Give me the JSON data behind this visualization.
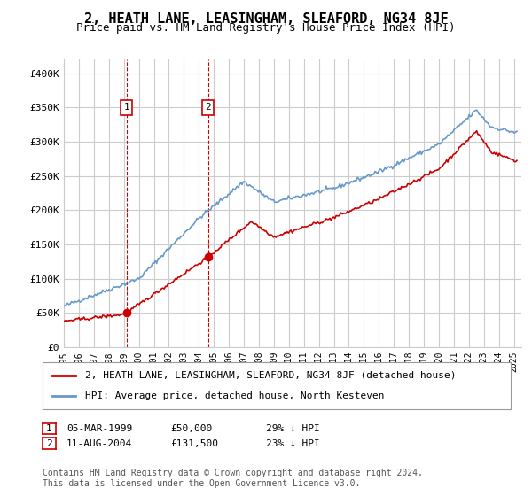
{
  "title": "2, HEATH LANE, LEASINGHAM, SLEAFORD, NG34 8JF",
  "subtitle": "Price paid vs. HM Land Registry's House Price Index (HPI)",
  "ylabel_ticks": [
    "£0",
    "£50K",
    "£100K",
    "£150K",
    "£200K",
    "£250K",
    "£300K",
    "£350K",
    "£400K"
  ],
  "ytick_values": [
    0,
    50000,
    100000,
    150000,
    200000,
    250000,
    300000,
    350000,
    400000
  ],
  "ylim": [
    0,
    420000
  ],
  "xlim_start": 1995.0,
  "xlim_end": 2025.5,
  "sale1_x": 1999.18,
  "sale1_y": 50000,
  "sale1_label": "1",
  "sale2_x": 2004.61,
  "sale2_y": 131500,
  "sale2_label": "2",
  "vline1_x": 1999.18,
  "vline2_x": 2004.61,
  "legend_line1": "2, HEATH LANE, LEASINGHAM, SLEAFORD, NG34 8JF (detached house)",
  "legend_line2": "HPI: Average price, detached house, North Kesteven",
  "table_row1": [
    "1",
    "05-MAR-1999",
    "£50,000",
    "29% ↓ HPI"
  ],
  "table_row2": [
    "2",
    "11-AUG-2004",
    "£131,500",
    "23% ↓ HPI"
  ],
  "footnote": "Contains HM Land Registry data © Crown copyright and database right 2024.\nThis data is licensed under the Open Government Licence v3.0.",
  "line_color_red": "#cc0000",
  "line_color_blue": "#6699cc",
  "vline_color": "#cc0000",
  "background_color": "#ffffff",
  "grid_color": "#cccccc",
  "title_fontsize": 11,
  "subtitle_fontsize": 9,
  "tick_fontsize": 8,
  "legend_fontsize": 8,
  "table_fontsize": 8,
  "footnote_fontsize": 7
}
